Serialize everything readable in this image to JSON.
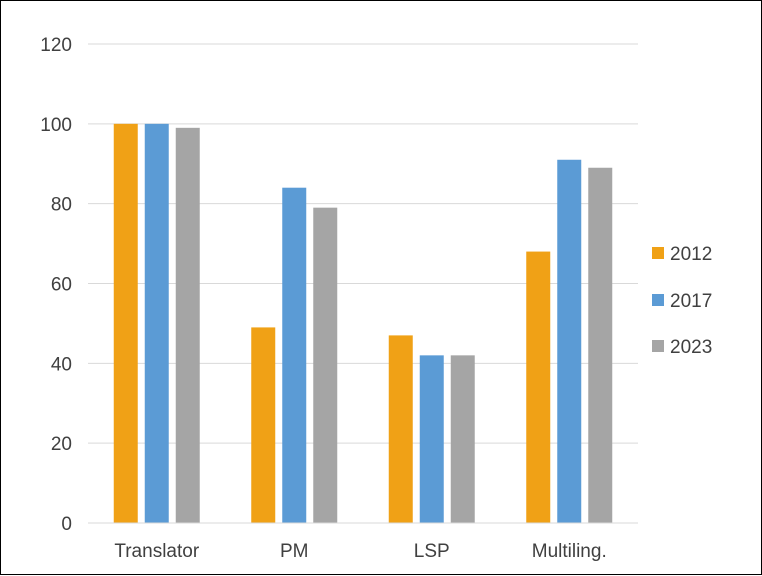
{
  "chart_data": {
    "type": "bar",
    "title": "",
    "xlabel": "",
    "ylabel": "",
    "categories": [
      "Translator",
      "PM",
      "LSP",
      "Multiling."
    ],
    "series": [
      {
        "name": "2012",
        "color": "#f0a116",
        "values": [
          100,
          49,
          47,
          68
        ]
      },
      {
        "name": "2017",
        "color": "#5b9bd5",
        "values": [
          100,
          84,
          42,
          91
        ]
      },
      {
        "name": "2023",
        "color": "#a5a5a5",
        "values": [
          99,
          79,
          42,
          89
        ]
      }
    ],
    "ylim": [
      0,
      120
    ],
    "yticks": [
      0,
      20,
      40,
      60,
      80,
      100,
      120
    ],
    "grid": true,
    "legend_position": "right"
  }
}
